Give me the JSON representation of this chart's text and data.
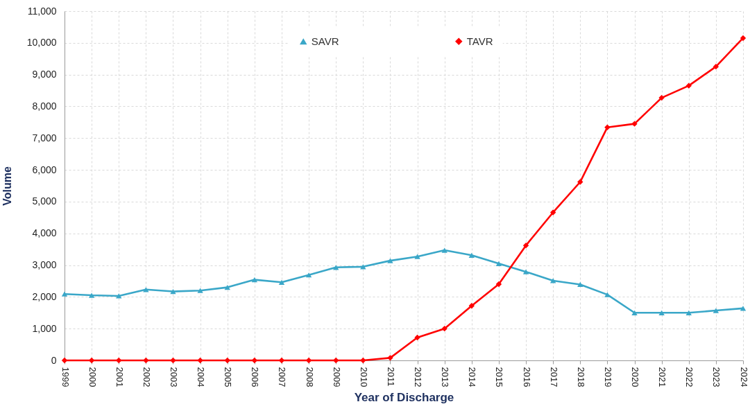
{
  "chart_data": {
    "type": "line",
    "xlabel": "Year of Discharge",
    "ylabel": "Volume",
    "categories": [
      "1999",
      "2000",
      "2001",
      "2002",
      "2003",
      "2004",
      "2005",
      "2006",
      "2007",
      "2008",
      "2009",
      "2010",
      "2011",
      "2012",
      "2013",
      "2014",
      "2015",
      "2016",
      "2017",
      "2018",
      "2019",
      "2020",
      "2021",
      "2022",
      "2023",
      "2024"
    ],
    "series": [
      {
        "name": "SAVR",
        "color": "#3aa7c8",
        "marker": "triangle",
        "values": [
          2090,
          2050,
          2030,
          2230,
          2170,
          2200,
          2300,
          2540,
          2460,
          2690,
          2930,
          2950,
          3140,
          3270,
          3470,
          3310,
          3050,
          2790,
          2510,
          2390,
          2070,
          1500,
          1500,
          1500,
          1570,
          1640
        ]
      },
      {
        "name": "TAVR",
        "color": "#ff0000",
        "marker": "diamond",
        "values": [
          0,
          0,
          0,
          0,
          0,
          0,
          0,
          0,
          0,
          0,
          0,
          0,
          80,
          720,
          1000,
          1720,
          2400,
          3620,
          4660,
          5620,
          7340,
          7450,
          8270,
          8650,
          9250,
          10150
        ]
      }
    ],
    "ylim": [
      0,
      11000
    ],
    "yticks": [
      {
        "value": 0,
        "label": "0"
      },
      {
        "value": 1000,
        "label": "1,000"
      },
      {
        "value": 2000,
        "label": "2,000"
      },
      {
        "value": 3000,
        "label": "3,000"
      },
      {
        "value": 4000,
        "label": "4,000"
      },
      {
        "value": 5000,
        "label": "5,000"
      },
      {
        "value": 6000,
        "label": "6,000"
      },
      {
        "value": 7000,
        "label": "7,000"
      },
      {
        "value": 8000,
        "label": "8,000"
      },
      {
        "value": 9000,
        "label": "9,000"
      },
      {
        "value": 10000,
        "label": "10,000"
      },
      {
        "value": 11000,
        "label": "11,000"
      }
    ],
    "grid": true,
    "legend": "top"
  }
}
